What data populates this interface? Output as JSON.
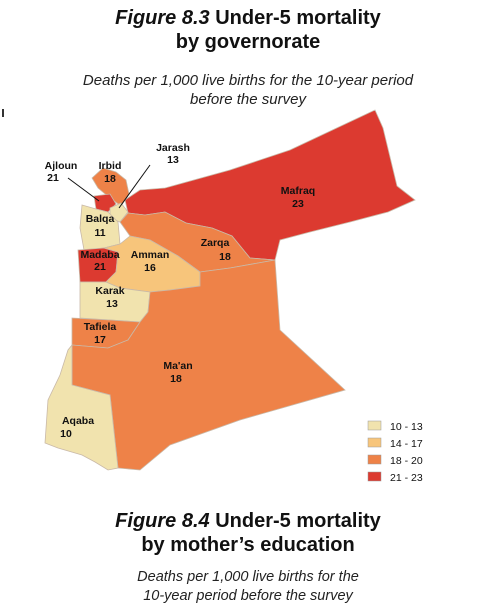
{
  "figure_8_3": {
    "number": "Figure 8.3",
    "title_part1": "Under-5 mortality",
    "title_part2": "by governorate",
    "subtitle_line1": "Deaths per 1,000 live births for the 10-year period",
    "subtitle_line2": "before the survey"
  },
  "map": {
    "governorates": [
      {
        "name": "Ajloun",
        "value": "21"
      },
      {
        "name": "Irbid",
        "value": "18"
      },
      {
        "name": "Jarash",
        "value": "13"
      },
      {
        "name": "Mafraq",
        "value": "23"
      },
      {
        "name": "Balqa",
        "value": "11"
      },
      {
        "name": "Zarqa",
        "value": "18"
      },
      {
        "name": "Madaba",
        "value": "21"
      },
      {
        "name": "Amman",
        "value": "16"
      },
      {
        "name": "Karak",
        "value": "13"
      },
      {
        "name": "Tafiela",
        "value": "17"
      },
      {
        "name": "Ma'an",
        "value": "18"
      },
      {
        "name": "Aqaba",
        "value": "10"
      }
    ],
    "legend": [
      {
        "label": "10 - 13",
        "color": "#f1e3ae"
      },
      {
        "label": "14 - 17",
        "color": "#f7c57b"
      },
      {
        "label": "18 - 20",
        "color": "#ee8248"
      },
      {
        "label": "21 - 23",
        "color": "#dc3a30"
      }
    ]
  },
  "figure_8_4": {
    "number": "Figure 8.4",
    "title_part1": "Under-5 mortality",
    "title_part2": "by mother’s education",
    "subtitle_line1": "Deaths per 1,000 live births for the",
    "subtitle_line2": "10-year period before the survey"
  }
}
